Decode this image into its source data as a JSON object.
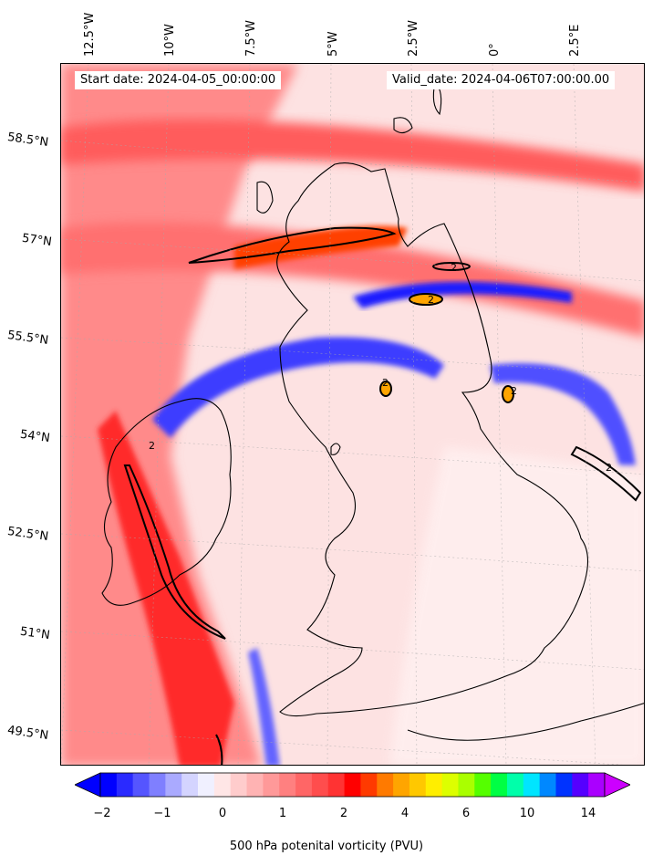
{
  "header": {
    "start_date": "Start date: 2024-04-05_00:00:00",
    "valid_date": "Valid_date: 2024-04-06T07:00:00.00"
  },
  "axes": {
    "longitude_labels": [
      "12.5°W",
      "10°W",
      "7.5°W",
      "5°W",
      "2.5°W",
      "0°",
      "2.5°E"
    ],
    "latitude_labels": [
      "58.5°N",
      "57°N",
      "55.5°N",
      "54°N",
      "52.5°N",
      "51°N",
      "49.5°N"
    ]
  },
  "colorbar": {
    "label": "500 hPa potenital vorticity (PVU)",
    "tick_labels": [
      "−2",
      "−1",
      "0",
      "1",
      "2",
      "4",
      "6",
      "10",
      "14"
    ],
    "colors": [
      "#0000ff",
      "#2a2aff",
      "#5555ff",
      "#7f7fff",
      "#aaaaff",
      "#d4d4ff",
      "#f0f0ff",
      "#ffe6e6",
      "#ffcccc",
      "#ffb3b3",
      "#ff9999",
      "#ff8080",
      "#ff6666",
      "#ff4d4d",
      "#ff3333",
      "#ff0000",
      "#ff3a00",
      "#ff7a00",
      "#ffa500",
      "#ffc800",
      "#ffee00",
      "#ddff00",
      "#aaff00",
      "#55ff00",
      "#00ff44",
      "#00ffaa",
      "#00e5ff",
      "#0088ff",
      "#0033ff",
      "#5500ff",
      "#aa00ff"
    ],
    "under_color": "#0000ff",
    "over_color": "#cc00ff"
  },
  "contour_labels": [
    "2",
    "2",
    "2",
    "2",
    "2",
    "2"
  ],
  "background_color": "#fde6e6",
  "coastline_color": "#000000"
}
